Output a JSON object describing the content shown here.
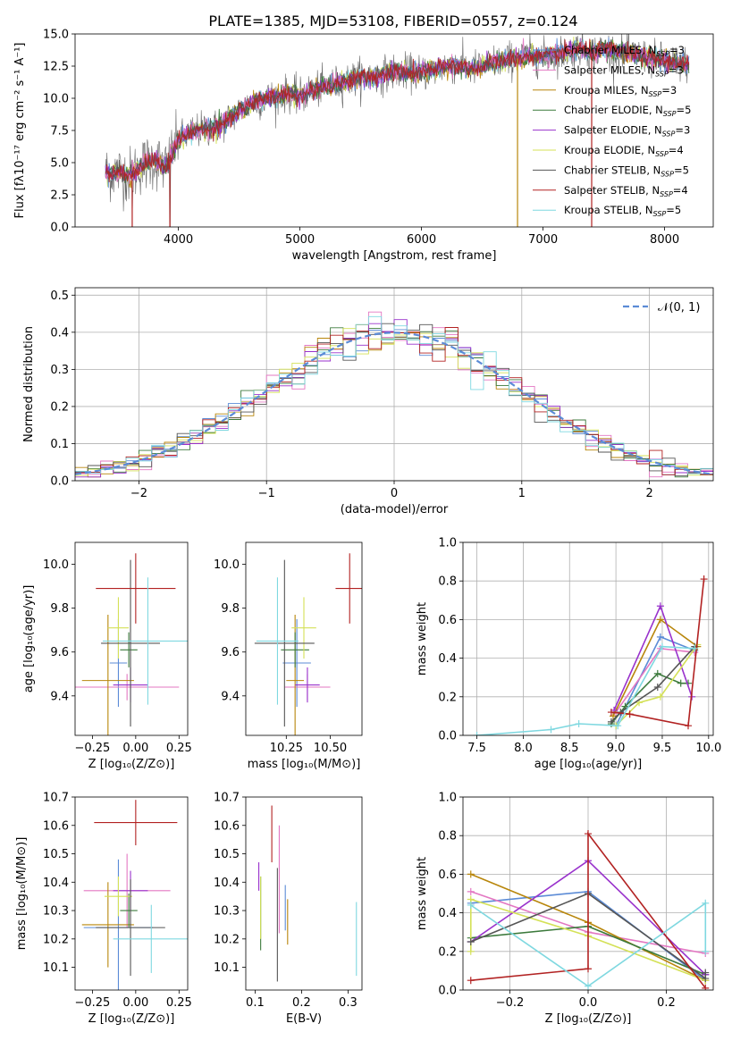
{
  "figure": {
    "title": "PLATE=1385, MJD=53108, FIBERID=0557, z=0.124"
  },
  "models": [
    {
      "name": "Chabrier MILES",
      "n_ssp": "3",
      "color": "#5b8bd6"
    },
    {
      "name": "Salpeter MILES",
      "n_ssp": "3",
      "color": "#e377c2"
    },
    {
      "name": "Kroupa MILES",
      "n_ssp": "3",
      "color": "#b8860b"
    },
    {
      "name": "Chabrier ELODIE",
      "n_ssp": "5",
      "color": "#3c7a3c"
    },
    {
      "name": "Salpeter ELODIE",
      "n_ssp": "3",
      "color": "#9932cc"
    },
    {
      "name": "Kroupa ELODIE",
      "n_ssp": "4",
      "color": "#d4e157"
    },
    {
      "name": "Chabrier STELIB",
      "n_ssp": "5",
      "color": "#555555"
    },
    {
      "name": "Salpeter STELIB",
      "n_ssp": "4",
      "color": "#b22222"
    },
    {
      "name": "Kroupa STELIB",
      "n_ssp": "5",
      "color": "#7fd8e0"
    }
  ],
  "chart_data": [
    {
      "id": "spectrum",
      "type": "line",
      "xlabel": "wavelength [Angstrom, rest frame]",
      "ylabel": "Flux [fλ10⁻¹⁷ erg cm⁻² s⁻¹ A⁻¹]",
      "xlim": [
        3150,
        8400
      ],
      "ylim": [
        0,
        15
      ],
      "xticks": [
        "4000",
        "5000",
        "6000",
        "7000",
        "8000"
      ],
      "yticks": [
        "0.0",
        "2.5",
        "5.0",
        "7.5",
        "10.0",
        "12.5",
        "15.0"
      ],
      "continuum": [
        [
          3400,
          4.2
        ],
        [
          3500,
          4.3
        ],
        [
          3600,
          4.0
        ],
        [
          3700,
          4.8
        ],
        [
          3800,
          5.2
        ],
        [
          3900,
          4.6
        ],
        [
          4000,
          6.8
        ],
        [
          4100,
          7.3
        ],
        [
          4200,
          7.6
        ],
        [
          4300,
          7.7
        ],
        [
          4400,
          8.3
        ],
        [
          4500,
          9.0
        ],
        [
          4600,
          9.6
        ],
        [
          4700,
          9.9
        ],
        [
          4800,
          10.1
        ],
        [
          4900,
          10.4
        ],
        [
          5000,
          10.1
        ],
        [
          5100,
          10.6
        ],
        [
          5200,
          10.9
        ],
        [
          5300,
          11.1
        ],
        [
          5400,
          11.4
        ],
        [
          5500,
          11.7
        ],
        [
          5600,
          11.6
        ],
        [
          5700,
          11.9
        ],
        [
          5800,
          12.1
        ],
        [
          5900,
          12.0
        ],
        [
          6000,
          12.0
        ],
        [
          6100,
          12.2
        ],
        [
          6200,
          12.5
        ],
        [
          6300,
          12.6
        ],
        [
          6400,
          12.3
        ],
        [
          6500,
          12.4
        ],
        [
          6600,
          12.8
        ],
        [
          6700,
          13.0
        ],
        [
          6800,
          13.1
        ],
        [
          6900,
          13.3
        ],
        [
          7000,
          13.2
        ],
        [
          7100,
          13.4
        ],
        [
          7200,
          13.6
        ],
        [
          7300,
          13.9
        ],
        [
          7400,
          13.6
        ],
        [
          7500,
          13.8
        ],
        [
          7600,
          13.7
        ],
        [
          7700,
          13.5
        ],
        [
          7800,
          13.3
        ],
        [
          7900,
          13.1
        ],
        [
          8000,
          12.9
        ],
        [
          8100,
          12.8
        ],
        [
          8200,
          12.6
        ]
      ],
      "dips": [
        [
          3620,
          0
        ],
        [
          3930,
          0
        ],
        [
          6790,
          0
        ],
        [
          7400,
          0
        ]
      ]
    },
    {
      "id": "residuals",
      "type": "bar",
      "xlabel": "(data-model)/error",
      "ylabel": "Normed distribution",
      "xlim": [
        -2.5,
        2.5
      ],
      "ylim": [
        0,
        0.52
      ],
      "xticks": [
        "−2",
        "−1",
        "0",
        "1",
        "2"
      ],
      "yticks": [
        "0.0",
        "0.1",
        "0.2",
        "0.3",
        "0.4",
        "0.5"
      ],
      "bin_width": 0.1,
      "legend": "𝒩(0, 1)",
      "normal_color": "#5b8bd6"
    },
    {
      "id": "age-vs-Z",
      "type": "scatter",
      "xlabel": "Z [log₁₀(Z/Z⊙)]",
      "ylabel": "age  [log₁₀(age/yr)]",
      "xlim": [
        -0.35,
        0.3
      ],
      "ylim": [
        9.22,
        10.1
      ],
      "xticks": [
        "−0.25",
        "0.00",
        "0.25"
      ],
      "yticks": [
        "9.4",
        "9.6",
        "9.8",
        "10.0"
      ],
      "points": [
        {
          "x": -0.1,
          "xerr": 0.05,
          "y": 9.55,
          "yerr": 0.2
        },
        {
          "x": -0.05,
          "xerr": 0.3,
          "y": 9.44,
          "yerr": 0.06
        },
        {
          "x": -0.16,
          "xerr": 0.15,
          "y": 9.47,
          "yerr": 0.3
        },
        {
          "x": -0.04,
          "xerr": 0.05,
          "y": 9.61,
          "yerr": 0.08
        },
        {
          "x": -0.03,
          "xerr": 0.1,
          "y": 9.45,
          "yerr": 0.08
        },
        {
          "x": -0.1,
          "xerr": 0.06,
          "y": 9.71,
          "yerr": 0.14
        },
        {
          "x": -0.03,
          "xerr": 0.17,
          "y": 9.64,
          "yerr": 0.38
        },
        {
          "x": 0.0,
          "xerr": 0.23,
          "y": 9.89,
          "yerr": 0.16
        },
        {
          "x": 0.07,
          "xerr": 0.26,
          "y": 9.65,
          "yerr": 0.29
        }
      ]
    },
    {
      "id": "age-vs-mass",
      "type": "scatter",
      "xlabel": "mass [log₁₀(M/M⊙)]",
      "ylabel": "",
      "xlim": [
        10.02,
        10.68
      ],
      "ylim": [
        9.22,
        10.1
      ],
      "xticks": [
        "10.25",
        "10.50"
      ],
      "yticks": [
        "9.4",
        "9.6",
        "9.8",
        "10.0"
      ],
      "points": [
        {
          "x": 10.31,
          "xerr": 0.08,
          "y": 9.55,
          "yerr": 0.2
        },
        {
          "x": 10.37,
          "xerr": 0.13,
          "y": 9.44,
          "yerr": 0.06
        },
        {
          "x": 10.3,
          "xerr": 0.05,
          "y": 9.47,
          "yerr": 0.3
        },
        {
          "x": 10.3,
          "xerr": 0.08,
          "y": 9.61,
          "yerr": 0.08
        },
        {
          "x": 10.37,
          "xerr": 0.07,
          "y": 9.45,
          "yerr": 0.08
        },
        {
          "x": 10.35,
          "xerr": 0.07,
          "y": 9.71,
          "yerr": 0.14
        },
        {
          "x": 10.24,
          "xerr": 0.17,
          "y": 9.64,
          "yerr": 0.38
        },
        {
          "x": 10.61,
          "xerr": 0.08,
          "y": 9.89,
          "yerr": 0.16
        },
        {
          "x": 10.2,
          "xerr": 0.12,
          "y": 9.65,
          "yerr": 0.29
        }
      ]
    },
    {
      "id": "weight-vs-age",
      "type": "line",
      "xlabel": "age  [log₁₀(age/yr)]",
      "ylabel": "mass weight",
      "xlim": [
        7.35,
        10.05
      ],
      "ylim": [
        0,
        1
      ],
      "xticks": [
        "7.5",
        "8.0",
        "8.5",
        "9.0",
        "9.5",
        "10.0"
      ],
      "yticks": [
        "0.0",
        "0.2",
        "0.4",
        "0.6",
        "0.8",
        "1.0"
      ],
      "series": [
        {
          "x": [
            9.0,
            9.48,
            9.85
          ],
          "y": [
            0.05,
            0.51,
            0.44
          ]
        },
        {
          "x": [
            9.0,
            9.48,
            9.85
          ],
          "y": [
            0.12,
            0.45,
            0.43
          ]
        },
        {
          "x": [
            8.97,
            9.48,
            9.88
          ],
          "y": [
            0.1,
            0.6,
            0.46
          ]
        },
        {
          "x": [
            8.95,
            9.1,
            9.45,
            9.7,
            9.78
          ],
          "y": [
            0.06,
            0.15,
            0.32,
            0.27,
            0.27
          ]
        },
        {
          "x": [
            8.98,
            9.48,
            9.82
          ],
          "y": [
            0.13,
            0.67,
            0.2
          ]
        },
        {
          "x": [
            9.0,
            9.25,
            9.48,
            9.88
          ],
          "y": [
            0.05,
            0.17,
            0.2,
            0.47
          ]
        },
        {
          "x": [
            8.95,
            9.05,
            9.45,
            9.85
          ],
          "y": [
            0.07,
            0.12,
            0.25,
            0.46
          ]
        },
        {
          "x": [
            8.95,
            9.15,
            9.78,
            9.95
          ],
          "y": [
            0.12,
            0.11,
            0.05,
            0.81
          ]
        },
        {
          "x": [
            7.5,
            8.3,
            8.6,
            9.02,
            9.5,
            9.85
          ],
          "y": [
            0.0,
            0.03,
            0.06,
            0.05,
            0.46,
            0.45
          ]
        }
      ]
    },
    {
      "id": "mass-vs-Z",
      "type": "scatter",
      "xlabel": "Z [log₁₀(Z/Z⊙)]",
      "ylabel": "mass [log₁₀(M/M⊙)]",
      "xlim": [
        -0.35,
        0.3
      ],
      "ylim": [
        10.02,
        10.7
      ],
      "xticks": [
        "−0.25",
        "0.00",
        "0.25"
      ],
      "yticks": [
        "10.1",
        "10.2",
        "10.3",
        "10.4",
        "10.5",
        "10.6",
        "10.7"
      ],
      "points": [
        {
          "x": -0.1,
          "xerr": 0.2,
          "y": 10.24,
          "yerr": 0.24
        },
        {
          "x": -0.05,
          "xerr": 0.25,
          "y": 10.37,
          "yerr": 0.13
        },
        {
          "x": -0.16,
          "xerr": 0.15,
          "y": 10.25,
          "yerr": 0.15
        },
        {
          "x": -0.04,
          "xerr": 0.05,
          "y": 10.3,
          "yerr": 0.06
        },
        {
          "x": -0.03,
          "xerr": 0.1,
          "y": 10.37,
          "yerr": 0.07
        },
        {
          "x": -0.1,
          "xerr": 0.08,
          "y": 10.35,
          "yerr": 0.07
        },
        {
          "x": -0.03,
          "xerr": 0.2,
          "y": 10.24,
          "yerr": 0.17
        },
        {
          "x": 0.0,
          "xerr": 0.24,
          "y": 10.61,
          "yerr": 0.08
        },
        {
          "x": 0.09,
          "xerr": 0.22,
          "y": 10.2,
          "yerr": 0.12
        }
      ]
    },
    {
      "id": "mass-vs-EBV",
      "type": "scatter",
      "xlabel": "E(B-V)",
      "ylabel": "",
      "xlim": [
        0.08,
        0.33
      ],
      "ylim": [
        10.02,
        10.7
      ],
      "xticks": [
        "0.1",
        "0.2",
        "0.3"
      ],
      "yticks": [
        "10.1",
        "10.2",
        "10.3",
        "10.4",
        "10.5",
        "10.6",
        "10.7"
      ],
      "points": [
        {
          "x": 0.165,
          "y": 10.31,
          "yerr": 0.08
        },
        {
          "x": 0.152,
          "y": 10.41,
          "yerr": 0.19
        },
        {
          "x": 0.17,
          "y": 10.26,
          "yerr": 0.08
        },
        {
          "x": 0.112,
          "y": 10.29,
          "yerr": 0.13
        },
        {
          "x": 0.108,
          "y": 10.42,
          "yerr": 0.05
        },
        {
          "x": 0.112,
          "y": 10.31,
          "yerr": 0.11
        },
        {
          "x": 0.148,
          "y": 10.25,
          "yerr": 0.2
        },
        {
          "x": 0.136,
          "y": 10.57,
          "yerr": 0.1
        },
        {
          "x": 0.318,
          "y": 10.2,
          "yerr": 0.13
        }
      ]
    },
    {
      "id": "weight-vs-Z",
      "type": "line",
      "xlabel": "Z [log₁₀(Z/Z⊙)]",
      "ylabel": "mass weight",
      "xlim": [
        -0.32,
        0.32
      ],
      "ylim": [
        0,
        1
      ],
      "xticks": [
        "−0.2",
        "0.0",
        "0.2"
      ],
      "yticks": [
        "0.0",
        "0.2",
        "0.4",
        "0.6",
        "0.8",
        "1.0"
      ],
      "series": [
        {
          "x": [
            -0.3,
            0.0,
            0.3
          ],
          "y": [
            0.45,
            0.51,
            0.05
          ]
        },
        {
          "x": [
            -0.3,
            0.0,
            0.3
          ],
          "y": [
            0.51,
            0.3,
            0.19
          ]
        },
        {
          "x": [
            -0.3,
            0.0,
            0.3
          ],
          "y": [
            0.6,
            0.35,
            0.05
          ]
        },
        {
          "x": [
            -0.3,
            0.0,
            0.3
          ],
          "y": [
            0.27,
            0.33,
            0.08
          ]
        },
        {
          "x": [
            -0.3,
            0.0,
            0.3
          ],
          "y": [
            0.25,
            0.67,
            0.08
          ]
        },
        {
          "x": [
            -0.3,
            -0.3,
            0.0,
            0.3
          ],
          "y": [
            0.2,
            0.47,
            0.28,
            0.05
          ]
        },
        {
          "x": [
            -0.3,
            0.0,
            0.3,
            0.3
          ],
          "y": [
            0.25,
            0.5,
            0.06,
            0.09
          ]
        },
        {
          "x": [
            -0.3,
            0.0,
            0.0,
            0.3
          ],
          "y": [
            0.05,
            0.11,
            0.81,
            0.01
          ]
        },
        {
          "x": [
            -0.3,
            0.0,
            0.3,
            0.3
          ],
          "y": [
            0.44,
            0.02,
            0.45,
            0.2
          ]
        }
      ]
    }
  ]
}
